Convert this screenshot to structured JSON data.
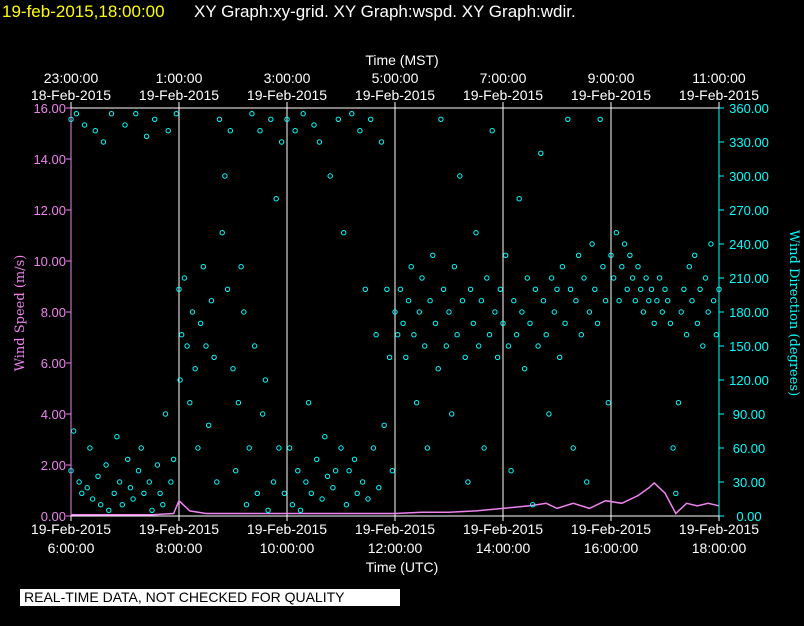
{
  "header": {
    "timestamp": "19-feb-2015,18:00:00",
    "graphs": "XY Graph:xy-grid.  XY Graph:wspd.  XY Graph:wdir."
  },
  "banner": "REAL-TIME DATA, NOT CHECKED FOR QUALITY",
  "colors": {
    "background": "#000000",
    "header_timestamp": "#ffff00",
    "header_text": "#ffffff",
    "wind_speed": "#ee82ee",
    "wind_direction": "#00ffff",
    "axis_text": "#ffffff"
  },
  "chart_data": {
    "type": "scatter",
    "top_axis": {
      "label": "Time (MST)",
      "ticks": [
        {
          "time": "23:00:00",
          "date": "18-Feb-2015"
        },
        {
          "time": "1:00:00",
          "date": "19-Feb-2015"
        },
        {
          "time": "3:00:00",
          "date": "19-Feb-2015"
        },
        {
          "time": "5:00:00",
          "date": "19-Feb-2015"
        },
        {
          "time": "7:00:00",
          "date": "19-Feb-2015"
        },
        {
          "time": "9:00:00",
          "date": "19-Feb-2015"
        },
        {
          "time": "11:00:00",
          "date": "19-Feb-2015"
        }
      ]
    },
    "bottom_axis": {
      "label": "Time (UTC)",
      "ticks": [
        {
          "date": "19-Feb-2015",
          "time": "6:00:00"
        },
        {
          "date": "19-Feb-2015",
          "time": "8:00:00"
        },
        {
          "date": "19-Feb-2015",
          "time": "10:00:00"
        },
        {
          "date": "19-Feb-2015",
          "time": "12:00:00"
        },
        {
          "date": "19-Feb-2015",
          "time": "14:00:00"
        },
        {
          "date": "19-Feb-2015",
          "time": "16:00:00"
        },
        {
          "date": "19-Feb-2015",
          "time": "18:00:00"
        }
      ],
      "xlim_utc_hours": [
        6,
        18
      ]
    },
    "left_axis": {
      "label": "Wind Speed (m/s)",
      "ylim": [
        0,
        16
      ],
      "ticks": [
        "0.00",
        "2.00",
        "4.00",
        "6.00",
        "8.00",
        "10.00",
        "12.00",
        "14.00",
        "16.00"
      ]
    },
    "right_axis": {
      "label": "Wind Direction (degrees)",
      "ylim": [
        0,
        360
      ],
      "ticks": [
        "0.00",
        "30.00",
        "60.00",
        "90.00",
        "120.00",
        "150.00",
        "180.00",
        "210.00",
        "240.00",
        "270.00",
        "300.00",
        "330.00",
        "360.00"
      ]
    },
    "grid_utc_hours": [
      8,
      10,
      12,
      14,
      16,
      18
    ],
    "series": [
      {
        "name": "Wind Speed",
        "axis": "left",
        "points": [
          [
            6.0,
            0.05
          ],
          [
            6.5,
            0.05
          ],
          [
            7.0,
            0.05
          ],
          [
            7.5,
            0.05
          ],
          [
            7.9,
            0.1
          ],
          [
            8.0,
            0.6
          ],
          [
            8.2,
            0.2
          ],
          [
            8.5,
            0.1
          ],
          [
            9.0,
            0.1
          ],
          [
            9.5,
            0.1
          ],
          [
            10.0,
            0.1
          ],
          [
            10.5,
            0.1
          ],
          [
            11.0,
            0.1
          ],
          [
            11.5,
            0.1
          ],
          [
            12.0,
            0.1
          ],
          [
            12.5,
            0.15
          ],
          [
            13.0,
            0.15
          ],
          [
            13.5,
            0.2
          ],
          [
            14.0,
            0.3
          ],
          [
            14.5,
            0.4
          ],
          [
            14.8,
            0.5
          ],
          [
            15.0,
            0.3
          ],
          [
            15.3,
            0.5
          ],
          [
            15.6,
            0.3
          ],
          [
            15.9,
            0.6
          ],
          [
            16.2,
            0.5
          ],
          [
            16.5,
            0.8
          ],
          [
            16.7,
            1.1
          ],
          [
            16.8,
            1.3
          ],
          [
            17.0,
            0.9
          ],
          [
            17.2,
            0.1
          ],
          [
            17.4,
            0.5
          ],
          [
            17.6,
            0.4
          ],
          [
            17.8,
            0.5
          ],
          [
            18.0,
            0.4
          ]
        ]
      },
      {
        "name": "Wind Direction",
        "axis": "right",
        "points": [
          [
            6.0,
            350
          ],
          [
            6.0,
            40
          ],
          [
            6.05,
            75
          ],
          [
            6.1,
            355
          ],
          [
            6.15,
            30
          ],
          [
            6.2,
            20
          ],
          [
            6.25,
            345
          ],
          [
            6.3,
            25
          ],
          [
            6.35,
            60
          ],
          [
            6.4,
            15
          ],
          [
            6.45,
            340
          ],
          [
            6.5,
            35
          ],
          [
            6.55,
            10
          ],
          [
            6.6,
            330
          ],
          [
            6.65,
            45
          ],
          [
            6.7,
            5
          ],
          [
            6.75,
            355
          ],
          [
            6.8,
            20
          ],
          [
            6.85,
            70
          ],
          [
            6.9,
            30
          ],
          [
            6.95,
            10
          ],
          [
            7.0,
            345
          ],
          [
            7.05,
            50
          ],
          [
            7.1,
            25
          ],
          [
            7.15,
            15
          ],
          [
            7.2,
            355
          ],
          [
            7.25,
            40
          ],
          [
            7.3,
            60
          ],
          [
            7.35,
            20
          ],
          [
            7.4,
            335
          ],
          [
            7.45,
            30
          ],
          [
            7.5,
            5
          ],
          [
            7.55,
            350
          ],
          [
            7.6,
            45
          ],
          [
            7.65,
            20
          ],
          [
            7.7,
            10
          ],
          [
            7.75,
            90
          ],
          [
            7.8,
            340
          ],
          [
            7.85,
            30
          ],
          [
            7.9,
            50
          ],
          [
            7.95,
            355
          ],
          [
            8.0,
            200
          ],
          [
            8.02,
            120
          ],
          [
            8.05,
            160
          ],
          [
            8.1,
            210
          ],
          [
            8.15,
            150
          ],
          [
            8.2,
            100
          ],
          [
            8.25,
            180
          ],
          [
            8.3,
            130
          ],
          [
            8.35,
            60
          ],
          [
            8.4,
            170
          ],
          [
            8.45,
            220
          ],
          [
            8.5,
            150
          ],
          [
            8.55,
            80
          ],
          [
            8.6,
            190
          ],
          [
            8.65,
            140
          ],
          [
            8.7,
            30
          ],
          [
            8.75,
            350
          ],
          [
            8.8,
            250
          ],
          [
            8.85,
            300
          ],
          [
            8.9,
            200
          ],
          [
            8.95,
            340
          ],
          [
            9.0,
            130
          ],
          [
            9.05,
            40
          ],
          [
            9.1,
            100
          ],
          [
            9.15,
            220
          ],
          [
            9.2,
            180
          ],
          [
            9.25,
            10
          ],
          [
            9.3,
            60
          ],
          [
            9.35,
            355
          ],
          [
            9.4,
            150
          ],
          [
            9.45,
            20
          ],
          [
            9.5,
            340
          ],
          [
            9.55,
            90
          ],
          [
            9.6,
            120
          ],
          [
            9.65,
            5
          ],
          [
            9.7,
            350
          ],
          [
            9.75,
            30
          ],
          [
            9.8,
            280
          ],
          [
            9.85,
            60
          ],
          [
            9.9,
            330
          ],
          [
            9.95,
            20
          ],
          [
            10.0,
            350
          ],
          [
            10.05,
            60
          ],
          [
            10.1,
            10
          ],
          [
            10.15,
            340
          ],
          [
            10.2,
            40
          ],
          [
            10.25,
            5
          ],
          [
            10.3,
            355
          ],
          [
            10.35,
            30
          ],
          [
            10.4,
            100
          ],
          [
            10.45,
            20
          ],
          [
            10.5,
            345
          ],
          [
            10.55,
            50
          ],
          [
            10.6,
            330
          ],
          [
            10.65,
            15
          ],
          [
            10.7,
            70
          ],
          [
            10.75,
            35
          ],
          [
            10.8,
            300
          ],
          [
            10.85,
            25
          ],
          [
            10.9,
            40
          ],
          [
            10.95,
            350
          ],
          [
            11.0,
            60
          ],
          [
            11.05,
            250
          ],
          [
            11.1,
            10
          ],
          [
            11.15,
            40
          ],
          [
            11.2,
            355
          ],
          [
            11.25,
            50
          ],
          [
            11.3,
            20
          ],
          [
            11.35,
            340
          ],
          [
            11.4,
            30
          ],
          [
            11.45,
            200
          ],
          [
            11.5,
            15
          ],
          [
            11.55,
            350
          ],
          [
            11.6,
            60
          ],
          [
            11.65,
            160
          ],
          [
            11.7,
            25
          ],
          [
            11.75,
            330
          ],
          [
            11.8,
            80
          ],
          [
            11.85,
            200
          ],
          [
            11.9,
            140
          ],
          [
            11.95,
            40
          ],
          [
            12.0,
            180
          ],
          [
            12.05,
            160
          ],
          [
            12.1,
            200
          ],
          [
            12.15,
            170
          ],
          [
            12.2,
            140
          ],
          [
            12.25,
            190
          ],
          [
            12.3,
            220
          ],
          [
            12.35,
            160
          ],
          [
            12.4,
            100
          ],
          [
            12.45,
            180
          ],
          [
            12.5,
            210
          ],
          [
            12.55,
            150
          ],
          [
            12.6,
            60
          ],
          [
            12.65,
            190
          ],
          [
            12.7,
            230
          ],
          [
            12.75,
            170
          ],
          [
            12.8,
            130
          ],
          [
            12.85,
            350
          ],
          [
            12.9,
            200
          ],
          [
            12.95,
            150
          ],
          [
            13.0,
            180
          ],
          [
            13.05,
            90
          ],
          [
            13.1,
            220
          ],
          [
            13.15,
            160
          ],
          [
            13.2,
            300
          ],
          [
            13.25,
            190
          ],
          [
            13.3,
            140
          ],
          [
            13.35,
            30
          ],
          [
            13.4,
            200
          ],
          [
            13.45,
            170
          ],
          [
            13.5,
            250
          ],
          [
            13.55,
            150
          ],
          [
            13.6,
            190
          ],
          [
            13.65,
            60
          ],
          [
            13.7,
            210
          ],
          [
            13.75,
            160
          ],
          [
            13.8,
            340
          ],
          [
            13.85,
            180
          ],
          [
            13.9,
            140
          ],
          [
            13.95,
            200
          ],
          [
            14.0,
            170
          ],
          [
            14.05,
            230
          ],
          [
            14.1,
            150
          ],
          [
            14.15,
            40
          ],
          [
            14.2,
            190
          ],
          [
            14.25,
            160
          ],
          [
            14.3,
            280
          ],
          [
            14.35,
            180
          ],
          [
            14.4,
            130
          ],
          [
            14.45,
            210
          ],
          [
            14.5,
            170
          ],
          [
            14.55,
            10
          ],
          [
            14.6,
            200
          ],
          [
            14.65,
            150
          ],
          [
            14.7,
            320
          ],
          [
            14.75,
            190
          ],
          [
            14.8,
            160
          ],
          [
            14.85,
            90
          ],
          [
            14.9,
            210
          ],
          [
            14.95,
            180
          ],
          [
            15.0,
            200
          ],
          [
            15.05,
            140
          ],
          [
            15.1,
            220
          ],
          [
            15.15,
            170
          ],
          [
            15.2,
            350
          ],
          [
            15.25,
            200
          ],
          [
            15.3,
            60
          ],
          [
            15.35,
            190
          ],
          [
            15.4,
            230
          ],
          [
            15.45,
            160
          ],
          [
            15.5,
            210
          ],
          [
            15.55,
            30
          ],
          [
            15.6,
            180
          ],
          [
            15.65,
            240
          ],
          [
            15.7,
            200
          ],
          [
            15.75,
            170
          ],
          [
            15.8,
            350
          ],
          [
            15.85,
            220
          ],
          [
            15.9,
            190
          ],
          [
            15.95,
            100
          ],
          [
            16.0,
            230
          ],
          [
            16.05,
            210
          ],
          [
            16.1,
            250
          ],
          [
            16.15,
            190
          ],
          [
            16.2,
            220
          ],
          [
            16.25,
            240
          ],
          [
            16.3,
            200
          ],
          [
            16.35,
            230
          ],
          [
            16.4,
            210
          ],
          [
            16.45,
            190
          ],
          [
            16.5,
            220
          ],
          [
            16.55,
            200
          ],
          [
            16.6,
            180
          ],
          [
            16.65,
            210
          ],
          [
            16.7,
            190
          ],
          [
            16.75,
            200
          ],
          [
            16.8,
            170
          ],
          [
            16.85,
            190
          ],
          [
            16.9,
            210
          ],
          [
            16.95,
            180
          ],
          [
            17.0,
            200
          ],
          [
            17.05,
            190
          ],
          [
            17.1,
            170
          ],
          [
            17.15,
            60
          ],
          [
            17.2,
            20
          ],
          [
            17.25,
            100
          ],
          [
            17.3,
            180
          ],
          [
            17.35,
            200
          ],
          [
            17.4,
            160
          ],
          [
            17.45,
            220
          ],
          [
            17.5,
            190
          ],
          [
            17.55,
            230
          ],
          [
            17.6,
            170
          ],
          [
            17.65,
            200
          ],
          [
            17.7,
            150
          ],
          [
            17.75,
            210
          ],
          [
            17.8,
            180
          ],
          [
            17.85,
            240
          ],
          [
            17.9,
            190
          ],
          [
            17.95,
            160
          ],
          [
            18.0,
            200
          ]
        ]
      }
    ]
  }
}
